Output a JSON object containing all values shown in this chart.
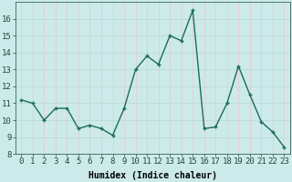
{
  "x": [
    0,
    1,
    2,
    3,
    4,
    5,
    6,
    7,
    8,
    9,
    10,
    11,
    12,
    13,
    14,
    15,
    16,
    17,
    18,
    19,
    20,
    21,
    22,
    23
  ],
  "y": [
    11.2,
    11.0,
    10.0,
    10.7,
    10.7,
    9.5,
    9.7,
    9.5,
    9.1,
    10.7,
    13.0,
    13.8,
    13.3,
    15.0,
    14.7,
    16.5,
    9.5,
    9.6,
    11.0,
    13.2,
    11.5,
    9.9,
    9.3,
    8.4
  ],
  "line_color": "#1a6b5a",
  "marker": "+",
  "marker_size": 3,
  "bg_color": "#cceaea",
  "grid_color": "#b8d8d8",
  "grid_color2": "#e8c8c8",
  "xlabel": "Humidex (Indice chaleur)",
  "xlim": [
    -0.5,
    23.5
  ],
  "ylim": [
    8,
    17
  ],
  "yticks": [
    8,
    9,
    10,
    11,
    12,
    13,
    14,
    15,
    16
  ],
  "xtick_labels": [
    "0",
    "1",
    "2",
    "3",
    "4",
    "5",
    "6",
    "7",
    "8",
    "9",
    "10",
    "11",
    "12",
    "13",
    "14",
    "15",
    "16",
    "17",
    "18",
    "19",
    "20",
    "21",
    "22",
    "23"
  ],
  "xlabel_fontsize": 7,
  "tick_fontsize": 6.5,
  "line_width": 1.0
}
